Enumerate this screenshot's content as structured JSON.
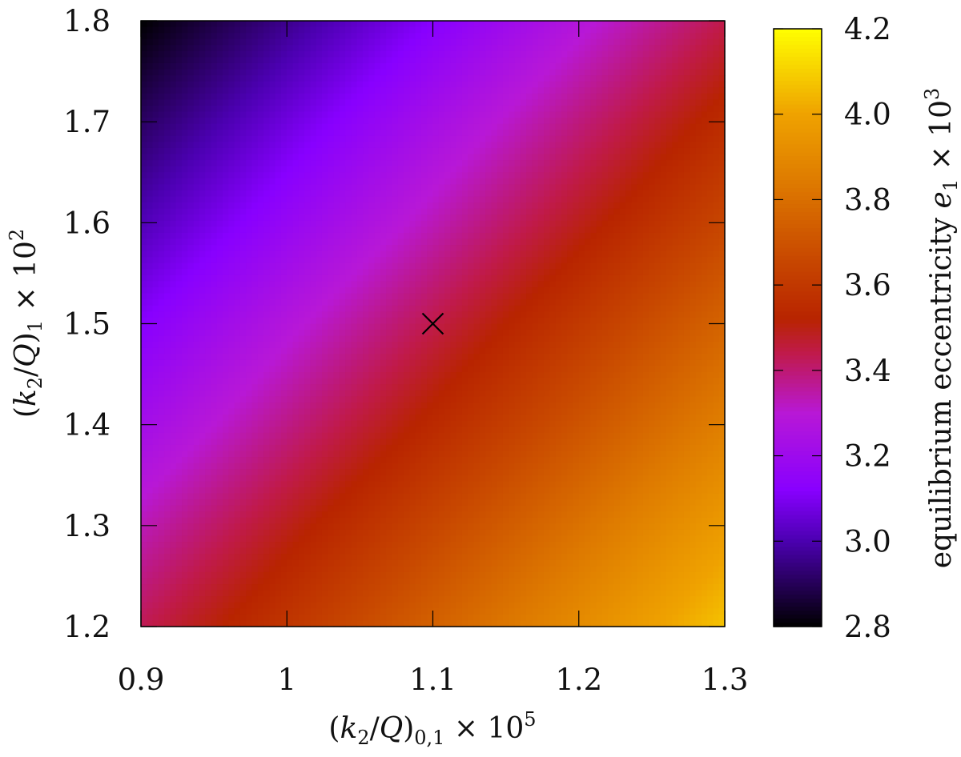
{
  "chart_data": {
    "type": "heatmap",
    "xlabel": "(k2/Q)0,1 × 10^5",
    "ylabel": "(k2/Q)1 × 10^2",
    "colorbar_label": "equilibrium eccentricity e1 × 10^3",
    "xlim": [
      0.9,
      1.3
    ],
    "ylim": [
      1.2,
      1.8
    ],
    "zlim": [
      2.8,
      4.2
    ],
    "x_ticks": [
      "0.9",
      "1",
      "1.1",
      "1.2",
      "1.3"
    ],
    "x_tick_values": [
      0.9,
      1.0,
      1.1,
      1.2,
      1.3
    ],
    "y_ticks": [
      "1.2",
      "1.3",
      "1.4",
      "1.5",
      "1.6",
      "1.7",
      "1.8"
    ],
    "y_tick_values": [
      1.2,
      1.3,
      1.4,
      1.5,
      1.6,
      1.7,
      1.8
    ],
    "colorbar_ticks": [
      "2.8",
      "3.0",
      "3.2",
      "3.4",
      "3.6",
      "3.8",
      "4.0",
      "4.2"
    ],
    "colorbar_tick_values": [
      2.8,
      3.0,
      3.2,
      3.4,
      3.6,
      3.8,
      4.0,
      4.2
    ],
    "colormap": "gnuplot-like (black-purple-violet-magenta-red-orange-yellow)",
    "field_model": "e1 ≈ 3.49 + 1.6*((k2/Q)0,1 - 1.1) - 1.05*((k2/Q)1 - 1.5) (approximate; linear contours, dark minimum at top-left, yellow maximum at bottom-right)",
    "grid_x": [
      0.9,
      1.0,
      1.1,
      1.2,
      1.3
    ],
    "grid_y": [
      1.8,
      1.7,
      1.6,
      1.5,
      1.4,
      1.3,
      1.2
    ],
    "values": [
      [
        2.8,
        2.96,
        3.12,
        3.28,
        3.44
      ],
      [
        2.91,
        3.07,
        3.23,
        3.39,
        3.55
      ],
      [
        3.01,
        3.17,
        3.33,
        3.49,
        3.65
      ],
      [
        3.12,
        3.28,
        3.44,
        3.6,
        3.76
      ],
      [
        3.22,
        3.38,
        3.54,
        3.7,
        3.86
      ],
      [
        3.33,
        3.49,
        3.65,
        3.81,
        3.97
      ],
      [
        3.43,
        3.59,
        3.75,
        3.91,
        4.07
      ]
    ],
    "marker": {
      "x": 1.1,
      "y": 1.5,
      "symbol": "×"
    },
    "colors": {
      "stops": [
        {
          "value": 2.8,
          "hex": "#000000"
        },
        {
          "value": 3.0,
          "hex": "#4b00b0"
        },
        {
          "value": 3.12,
          "hex": "#8800ff"
        },
        {
          "value": 3.3,
          "hex": "#b818d6"
        },
        {
          "value": 3.44,
          "hex": "#c01a4a"
        },
        {
          "value": 3.52,
          "hex": "#b82400"
        },
        {
          "value": 3.66,
          "hex": "#c84800"
        },
        {
          "value": 3.84,
          "hex": "#de7a00"
        },
        {
          "value": 4.0,
          "hex": "#efa200"
        },
        {
          "value": 4.2,
          "hex": "#ffff00"
        }
      ]
    }
  }
}
